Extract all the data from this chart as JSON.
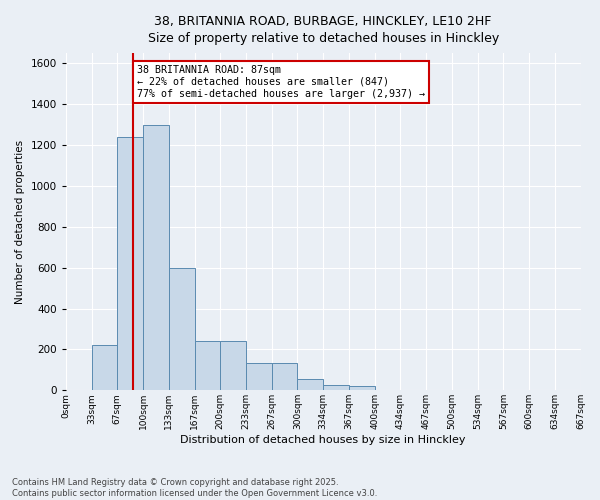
{
  "title_line1": "38, BRITANNIA ROAD, BURBAGE, HINCKLEY, LE10 2HF",
  "title_line2": "Size of property relative to detached houses in Hinckley",
  "xlabel": "Distribution of detached houses by size in Hinckley",
  "ylabel": "Number of detached properties",
  "bar_values": [
    0,
    220,
    1240,
    1300,
    600,
    240,
    240,
    135,
    135,
    55,
    25,
    20,
    0,
    0,
    0,
    0,
    0,
    0,
    0,
    0
  ],
  "bin_labels": [
    "0sqm",
    "33sqm",
    "67sqm",
    "100sqm",
    "133sqm",
    "167sqm",
    "200sqm",
    "233sqm",
    "267sqm",
    "300sqm",
    "334sqm",
    "367sqm",
    "400sqm",
    "434sqm",
    "467sqm",
    "500sqm",
    "534sqm",
    "567sqm",
    "600sqm",
    "634sqm",
    "667sqm"
  ],
  "bar_color": "#c8d8e8",
  "bar_edge_color": "#5a8ab0",
  "vline_color": "#cc0000",
  "annotation_text": "38 BRITANNIA ROAD: 87sqm\n← 22% of detached houses are smaller (847)\n77% of semi-detached houses are larger (2,937) →",
  "annotation_box_color": "#ffffff",
  "annotation_box_edge_color": "#cc0000",
  "ylim": [
    0,
    1650
  ],
  "yticks": [
    0,
    200,
    400,
    600,
    800,
    1000,
    1200,
    1400,
    1600
  ],
  "background_color": "#eaeff5",
  "grid_color": "#ffffff",
  "footer_line1": "Contains HM Land Registry data © Crown copyright and database right 2025.",
  "footer_line2": "Contains public sector information licensed under the Open Government Licence v3.0."
}
